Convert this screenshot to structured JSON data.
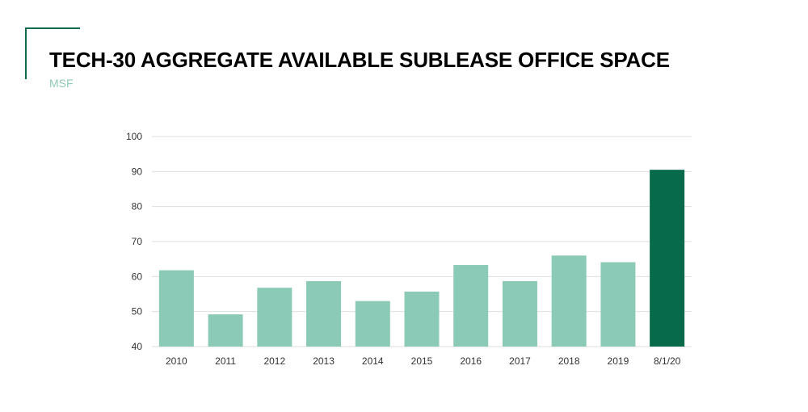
{
  "header": {
    "title": "TECH-30 AGGREGATE  AVAILABLE SUBLEASE OFFICE SPACE",
    "subtitle": "MSF"
  },
  "colors": {
    "accent": "#0c6b4e",
    "bar": "#8ccab8",
    "bar_highlight": "#066a4b",
    "grid": "#dedede",
    "subtitle": "#8fcab9"
  },
  "chart_data": {
    "type": "bar",
    "title": "TECH-30 AGGREGATE  AVAILABLE SUBLEASE OFFICE SPACE",
    "subtitle": "MSF",
    "xlabel": "",
    "ylabel": "",
    "categories": [
      "2010",
      "2011",
      "2012",
      "2013",
      "2014",
      "2015",
      "2016",
      "2017",
      "2018",
      "2019",
      "8/1/20"
    ],
    "values": [
      61.8,
      49.2,
      56.8,
      58.7,
      53.0,
      55.7,
      63.3,
      58.7,
      66.0,
      64.1,
      90.5
    ],
    "highlight_index": 10,
    "ylim": [
      40,
      100
    ],
    "yticks": [
      40,
      50,
      60,
      70,
      80,
      90,
      100
    ],
    "grid": true,
    "legend": "none"
  }
}
